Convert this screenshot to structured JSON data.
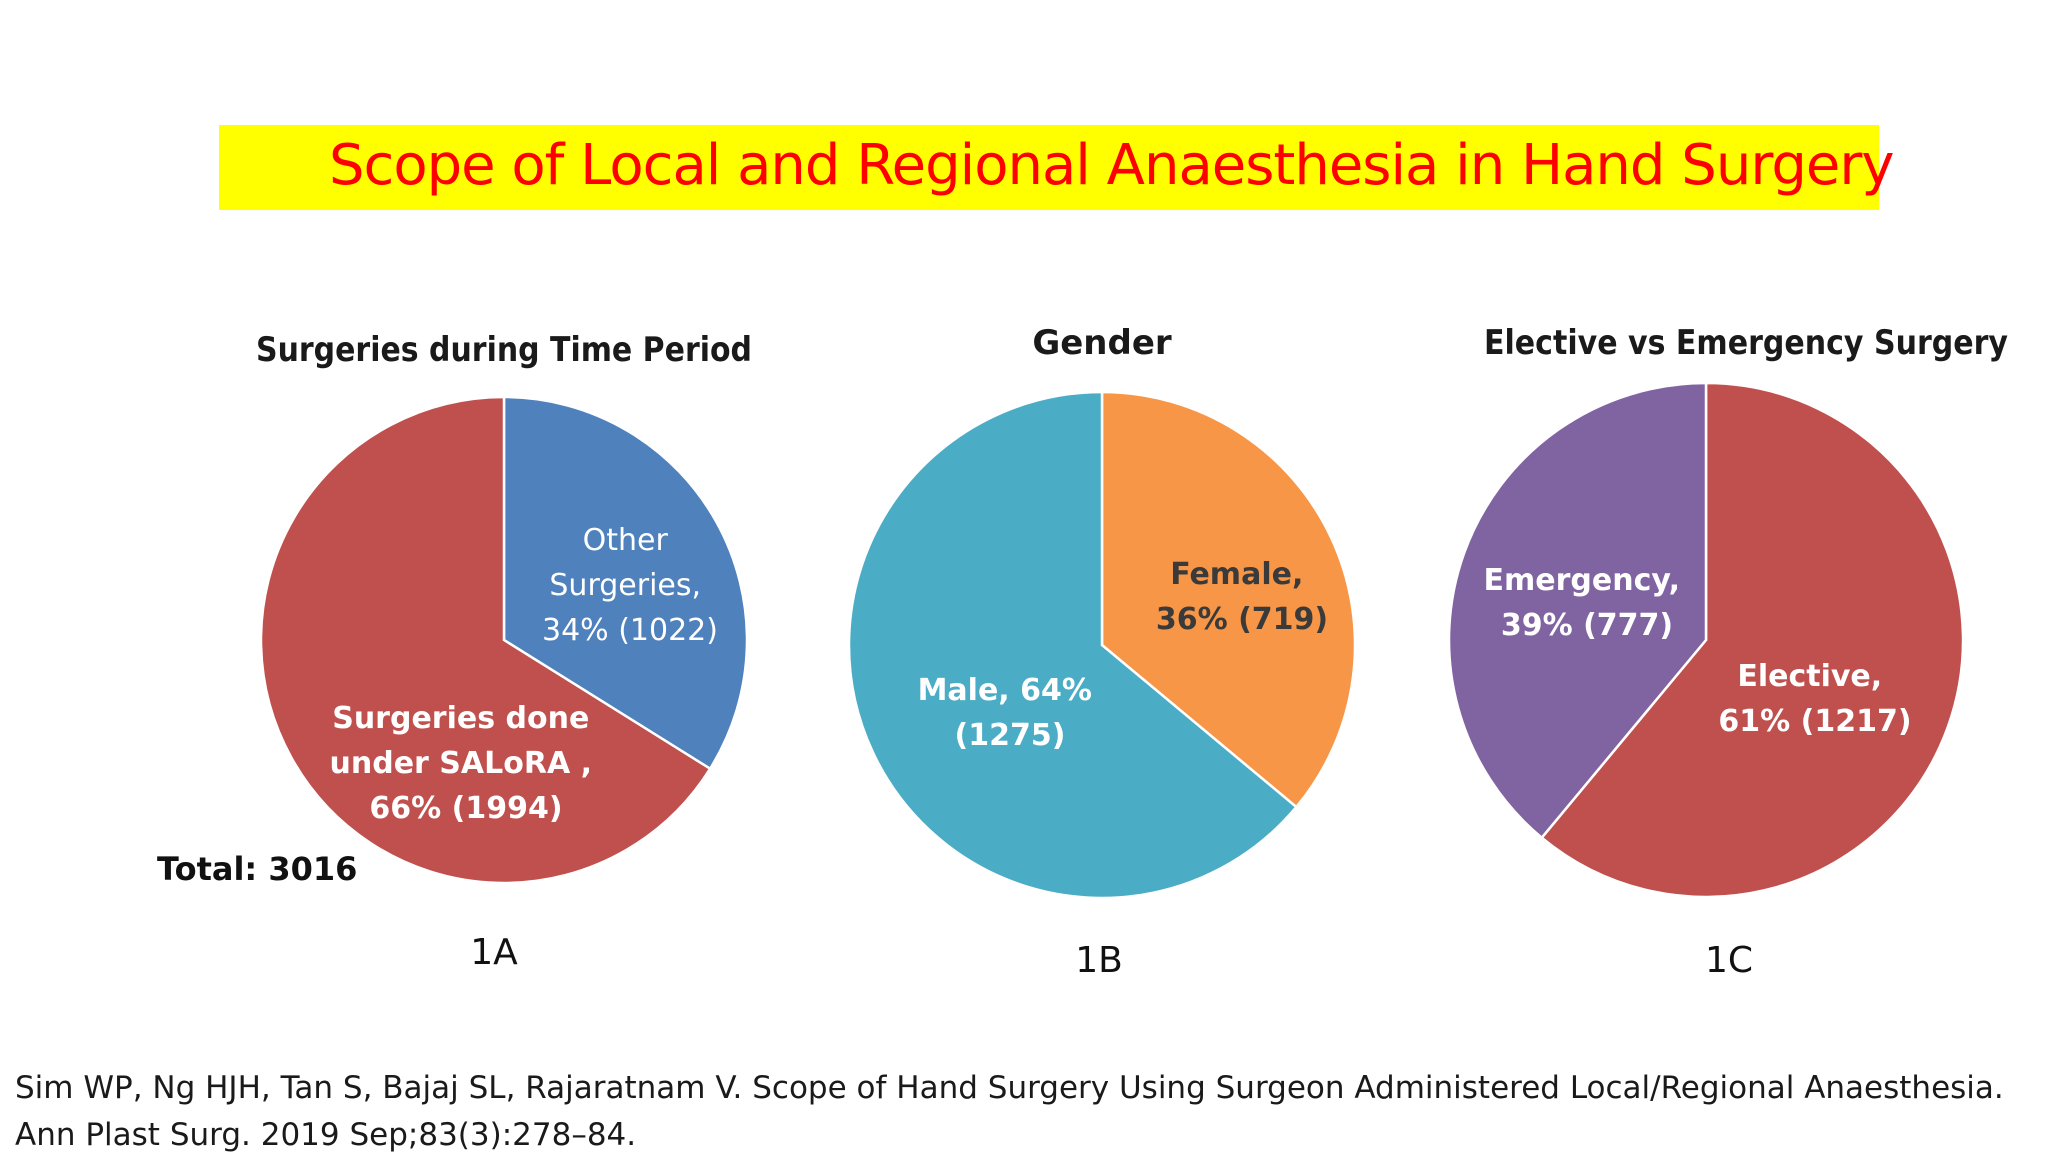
{
  "slide": {
    "title": "Scope of Local and Regional Anaesthesia in Hand Surgery",
    "citation_line1": "Sim WP, Ng HJH, Tan S, Bajaj SL, Rajaratnam V. Scope of Hand Surgery Using Surgeon Administered Local/Regional Anaesthesia.",
    "citation_line2": "Ann Plast Surg. 2019 Sep;83(3):278–84."
  },
  "chart_data": [
    {
      "type": "pie",
      "title": "Surgeries during Time Period",
      "figure_label": "1A",
      "note": "Total: 3016",
      "slices": [
        {
          "label_lines": [
            "Other",
            "Surgeries,",
            "34% (1022)"
          ],
          "value": 1022,
          "percent": 34,
          "color": "#4f81bd"
        },
        {
          "label_lines": [
            "Surgeries done",
            "under SALoRA ,",
            "66% (1994)"
          ],
          "value": 1994,
          "percent": 66,
          "color": "#c0504d"
        }
      ]
    },
    {
      "type": "pie",
      "title": "Gender",
      "figure_label": "1B",
      "slices": [
        {
          "label_lines": [
            "Female,",
            "36% (719)"
          ],
          "value": 719,
          "percent": 36,
          "color": "#f79646"
        },
        {
          "label_lines": [
            "Male, 64%",
            "(1275)"
          ],
          "value": 1275,
          "percent": 64,
          "color": "#4bacc6"
        }
      ]
    },
    {
      "type": "pie",
      "title": "Elective vs Emergency Surgery",
      "figure_label": "1C",
      "slices": [
        {
          "label_lines": [
            "Elective,",
            "61% (1217)"
          ],
          "value": 1217,
          "percent": 61,
          "color": "#c0504d"
        },
        {
          "label_lines": [
            "Emergency,",
            "39% (777)"
          ],
          "value": 777,
          "percent": 39,
          "color": "#8064a2"
        }
      ]
    }
  ]
}
